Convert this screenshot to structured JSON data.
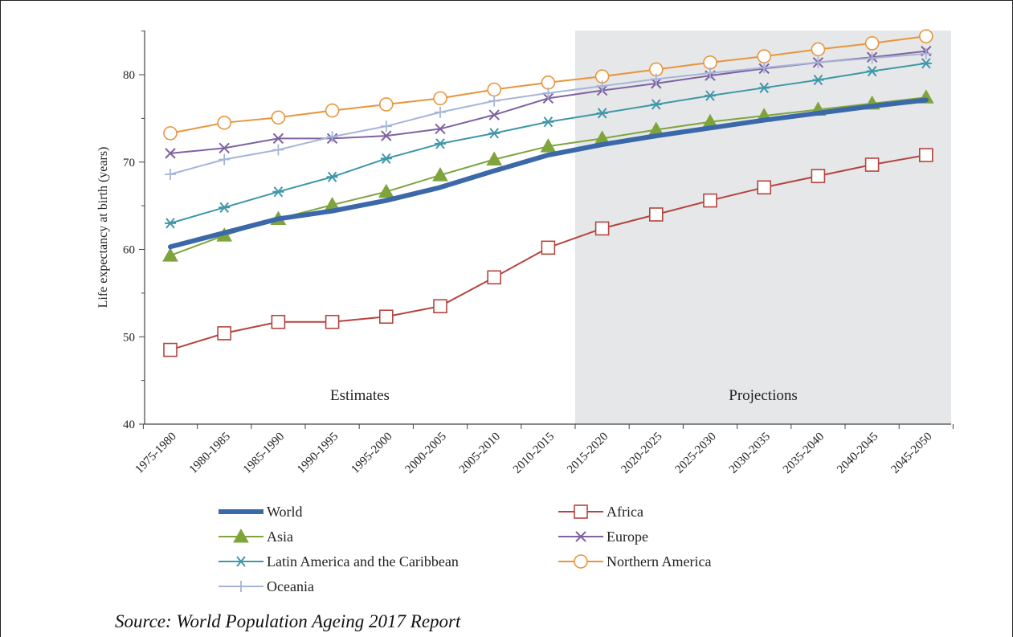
{
  "source": "Source: World Population Ageing 2017 Report",
  "chart_data": {
    "type": "line",
    "title": "",
    "xlabel": "",
    "ylabel": "Life expectancy at birth (years)",
    "ylim": [
      40,
      85
    ],
    "yticks": [
      40,
      50,
      60,
      70,
      80
    ],
    "grid": false,
    "legend_position": "bottom",
    "categories": [
      "1975-1980",
      "1980-1985",
      "1985-1990",
      "1990-1995",
      "1995-2000",
      "2000-2005",
      "2005-2010",
      "2010-2015",
      "2015-2020",
      "2020-2025",
      "2025-2030",
      "2030-2035",
      "2035-2040",
      "2040-2045",
      "2045-2050"
    ],
    "regions": [
      {
        "label": "Estimates",
        "from": "1975-1980",
        "to": "2010-2015",
        "shaded": false
      },
      {
        "label": "Projections",
        "from": "2015-2020",
        "to": "2045-2050",
        "shaded": true,
        "color": "#e6e7e8"
      }
    ],
    "series": [
      {
        "name": "World",
        "color": "#3a68a8",
        "marker": "none",
        "values": [
          60.3,
          61.9,
          63.5,
          64.4,
          65.6,
          67.1,
          69.0,
          70.8,
          72.0,
          73.0,
          73.9,
          74.8,
          75.6,
          76.4,
          77.1
        ]
      },
      {
        "name": "Africa",
        "color": "#b5443f",
        "marker": "square",
        "values": [
          48.5,
          50.4,
          51.7,
          51.7,
          52.3,
          53.5,
          56.8,
          60.2,
          62.4,
          64.0,
          65.6,
          67.1,
          68.4,
          69.7,
          70.8
        ]
      },
      {
        "name": "Asia",
        "color": "#7fa43c",
        "marker": "triangle",
        "values": [
          59.3,
          61.6,
          63.5,
          65.1,
          66.6,
          68.5,
          70.3,
          71.8,
          72.7,
          73.7,
          74.6,
          75.3,
          76.0,
          76.7,
          77.4
        ]
      },
      {
        "name": "Europe",
        "color": "#7f63a0",
        "marker": "x",
        "values": [
          71.0,
          71.6,
          72.7,
          72.7,
          73.0,
          73.8,
          75.4,
          77.3,
          78.2,
          79.0,
          79.9,
          80.7,
          81.4,
          82.0,
          82.7
        ]
      },
      {
        "name": "Latin America and the Caribbean",
        "color": "#3f97a8",
        "marker": "asterisk",
        "values": [
          63.0,
          64.8,
          66.6,
          68.3,
          70.4,
          72.1,
          73.3,
          74.6,
          75.6,
          76.6,
          77.6,
          78.5,
          79.4,
          80.4,
          81.3
        ]
      },
      {
        "name": "Northern America",
        "color": "#e8953c",
        "marker": "circle",
        "values": [
          73.3,
          74.5,
          75.1,
          75.9,
          76.6,
          77.3,
          78.3,
          79.1,
          79.8,
          80.6,
          81.4,
          82.1,
          82.9,
          83.6,
          84.4
        ]
      },
      {
        "name": "Oceania",
        "color": "#a6b4d8",
        "marker": "plus",
        "values": [
          68.6,
          70.3,
          71.4,
          72.9,
          74.1,
          75.7,
          77.0,
          77.9,
          78.7,
          79.5,
          80.2,
          80.8,
          81.4,
          81.9,
          82.4
        ]
      }
    ]
  }
}
